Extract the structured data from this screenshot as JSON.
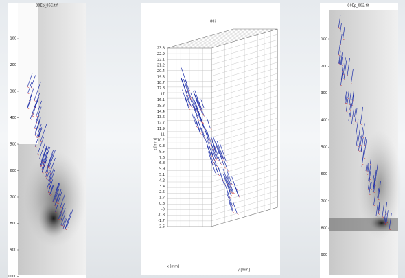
{
  "left_panel": {
    "title": "80Ep_06C.tif",
    "yticks": [
      "100",
      "200",
      "300",
      "400",
      "500",
      "600",
      "700",
      "800",
      "900",
      "1000"
    ]
  },
  "middle_panel": {
    "title": "80i",
    "zlabel": "z [mm]",
    "xlabel": "x [mm]",
    "ylabel": "y [mm]",
    "zticks": [
      "23.8",
      "22.9",
      "22.1",
      "21.2",
      "20.4",
      "19.5",
      "18.7",
      "17.8",
      "17",
      "16.1",
      "15.3",
      "14.4",
      "13.6",
      "12.7",
      "11.9",
      "11",
      "10.2",
      "9.3",
      "8.5",
      "7.6",
      "6.8",
      "5.9",
      "5.1",
      "4.2",
      "3.4",
      "2.5",
      "1.7",
      "0.8",
      "-0",
      "-0.8",
      "-1.7",
      "-2.6"
    ]
  },
  "right_panel": {
    "title": "80Ep_002.tif",
    "yticks": [
      "100",
      "200",
      "300",
      "400",
      "500",
      "600",
      "700",
      "800",
      "900"
    ]
  }
}
